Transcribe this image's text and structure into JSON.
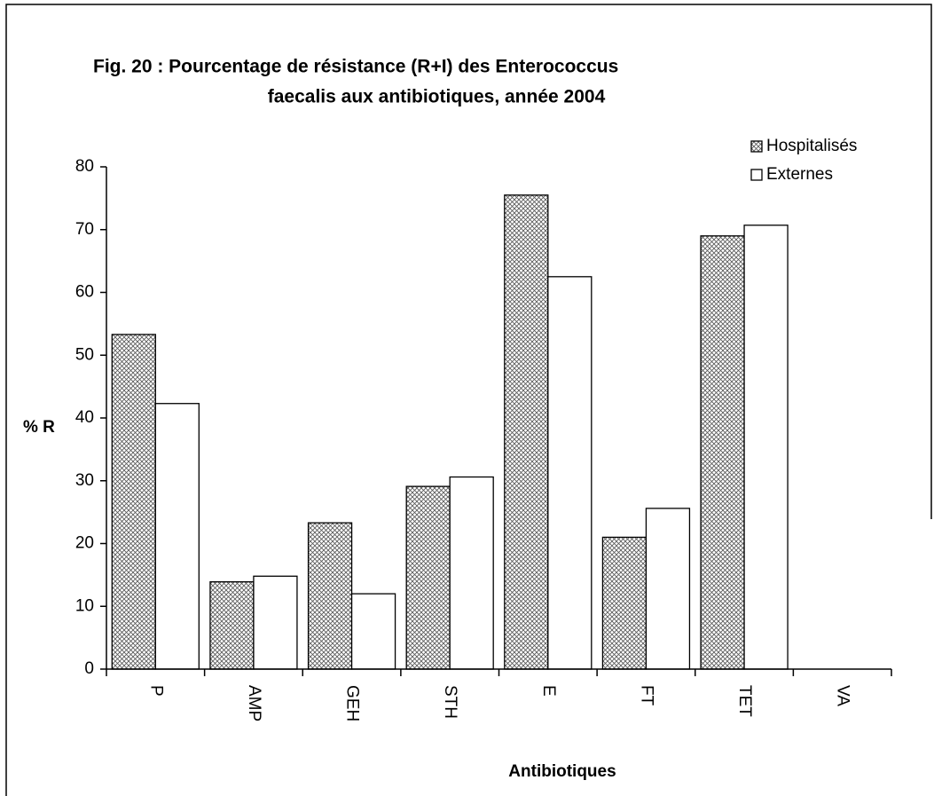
{
  "chart_data": {
    "type": "bar",
    "title": [
      "Fig. 20 : Pourcentage de résistance (R+I) des Enterococcus",
      "faecalis aux antibiotiques, année 2004"
    ],
    "x_label": "Antibiotiques",
    "y_label": "% R",
    "categories": [
      "P",
      "AMP",
      "GEH",
      "STH",
      "E",
      "FT",
      "TET",
      "VA"
    ],
    "series": [
      {
        "name": "Hospitalisés",
        "color": "#ffffff",
        "pattern": "hatch",
        "values": [
          53.3,
          13.9,
          23.3,
          29.1,
          75.5,
          21,
          69,
          0
        ]
      },
      {
        "name": "Externes",
        "color": "#ffffff",
        "values": [
          42.3,
          14.8,
          12,
          30.6,
          62.5,
          25.6,
          70.7,
          0
        ]
      }
    ],
    "ylim": [
      0,
      80
    ],
    "yticks": [
      0,
      10,
      20,
      30,
      40,
      50,
      60,
      70,
      80
    ],
    "grid": false,
    "legend": "top-right"
  }
}
